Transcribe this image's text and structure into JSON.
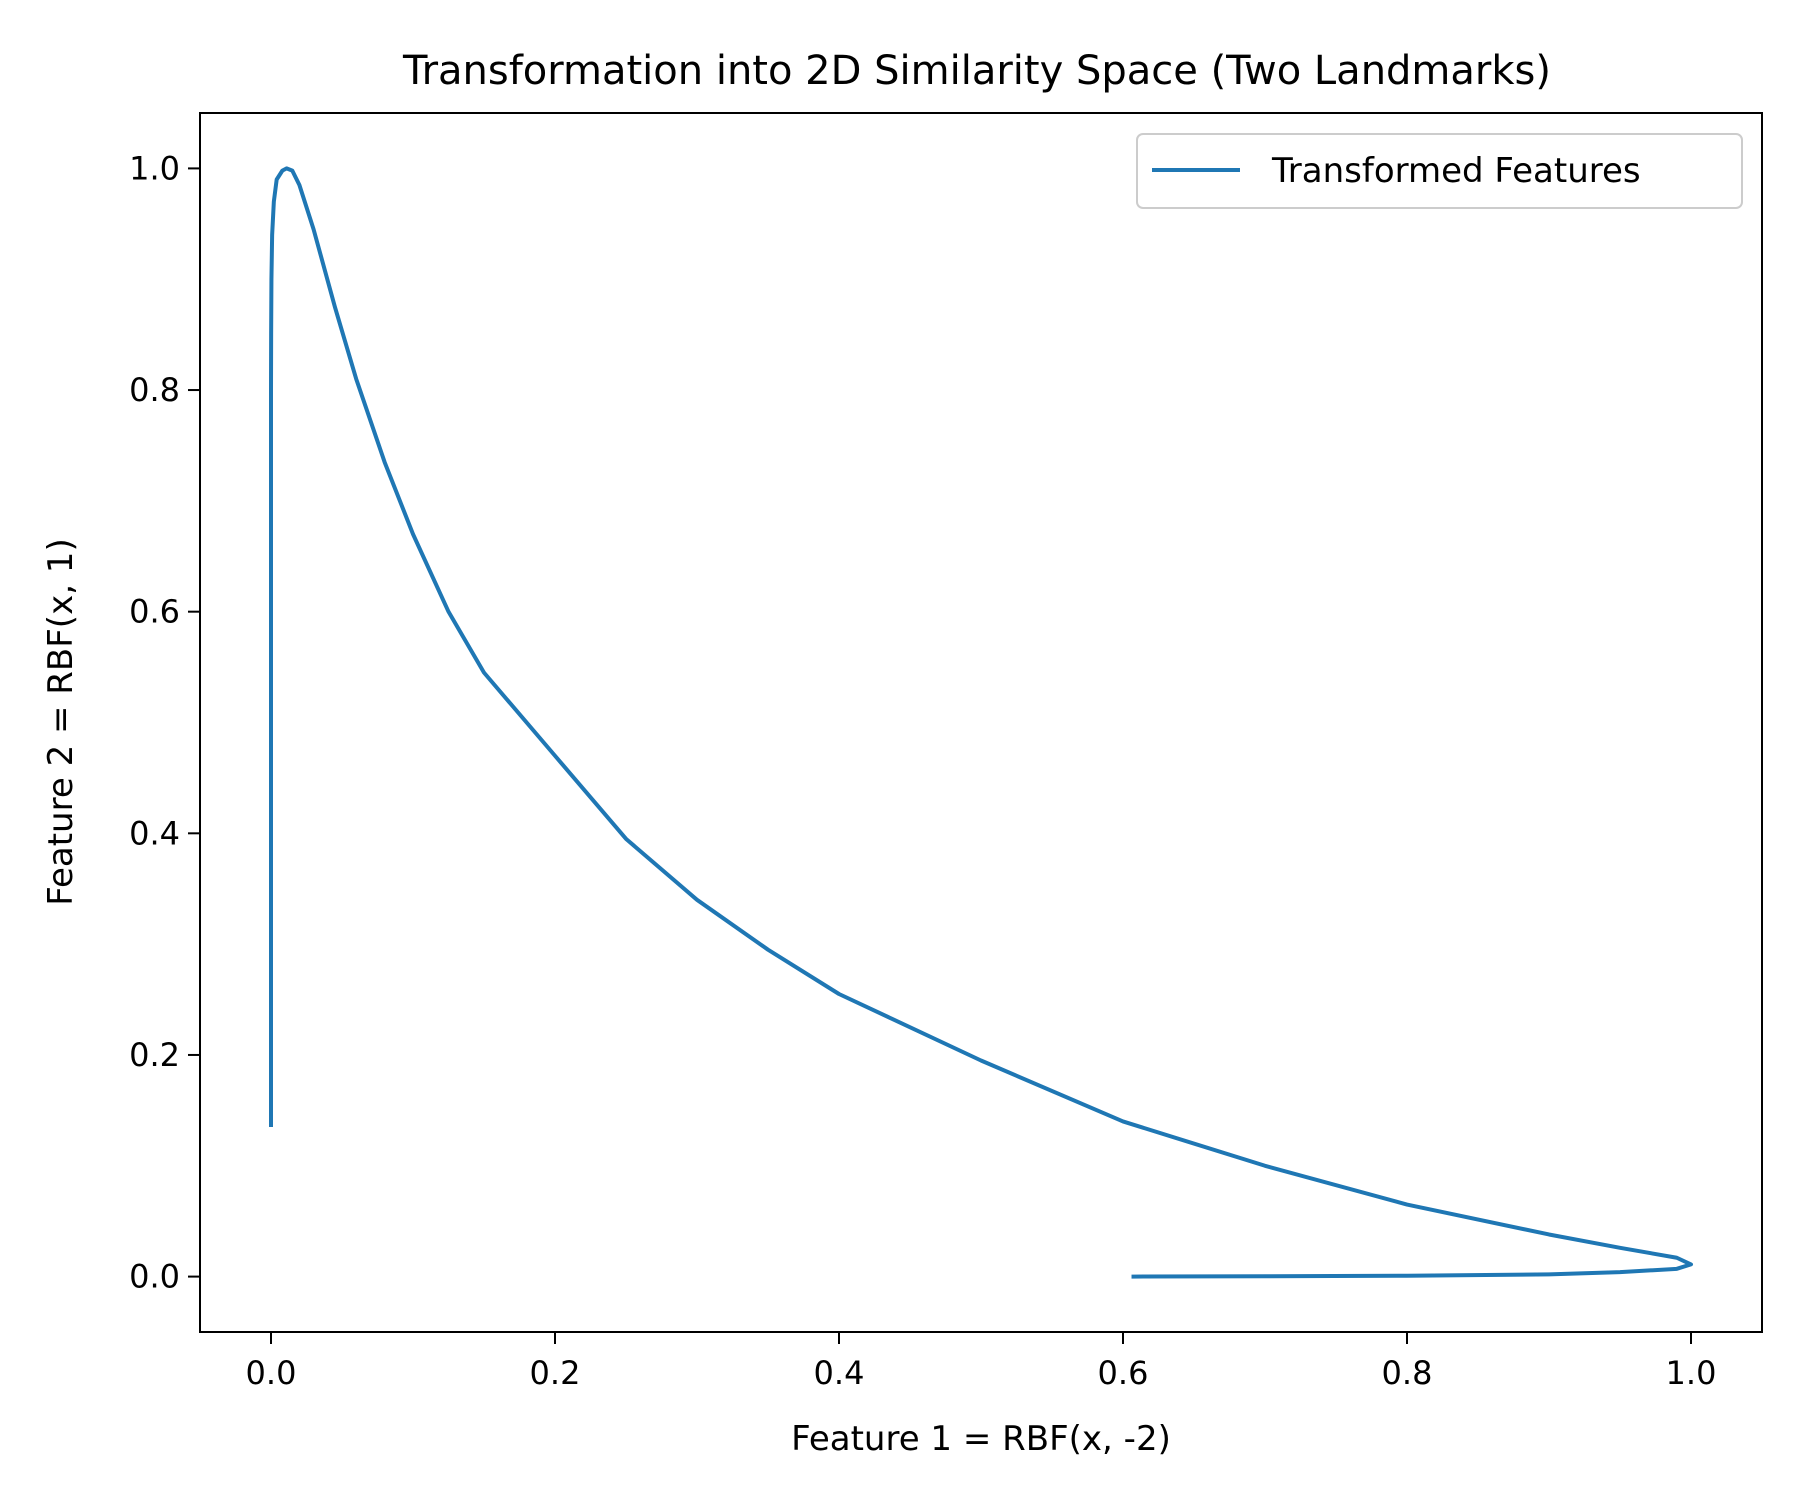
{
  "chart_data": {
    "type": "line",
    "title": "Transformation into 2D Similarity Space (Two Landmarks)",
    "xlabel": "Feature 1 = RBF(x, -2)",
    "ylabel": "Feature 2 = RBF(x, 1)",
    "xlim": [
      -0.05,
      1.05
    ],
    "ylim": [
      -0.05,
      1.05
    ],
    "xticks": [
      0.0,
      0.2,
      0.4,
      0.6,
      0.8,
      1.0
    ],
    "xtick_labels": [
      "0.0",
      "0.2",
      "0.4",
      "0.6",
      "0.8",
      "1.0"
    ],
    "yticks": [
      0.0,
      0.2,
      0.4,
      0.6,
      0.8,
      1.0
    ],
    "ytick_labels": [
      "0.0",
      "0.2",
      "0.4",
      "0.6",
      "0.8",
      "1.0"
    ],
    "grid": false,
    "legend_position": "top-right",
    "series": [
      {
        "name": "Transformed Features",
        "color": "#1f77b4",
        "x": [
          0.0,
          0.0,
          0.0,
          0.0,
          0.0,
          0.0,
          0.0,
          0.0,
          0.0,
          0.0001,
          0.0003,
          0.0008,
          0.002,
          0.004,
          0.008,
          0.011,
          0.015,
          0.02,
          0.03,
          0.045,
          0.06,
          0.08,
          0.1,
          0.125,
          0.15,
          0.2,
          0.25,
          0.3,
          0.35,
          0.4,
          0.5,
          0.6,
          0.7,
          0.8,
          0.9,
          0.95,
          0.99,
          1.0,
          0.99,
          0.95,
          0.9,
          0.8,
          0.7,
          0.606
        ],
        "y": [
          0.135,
          0.2,
          0.3,
          0.4,
          0.5,
          0.6,
          0.7,
          0.75,
          0.8,
          0.85,
          0.9,
          0.94,
          0.97,
          0.99,
          0.998,
          1.0,
          0.998,
          0.985,
          0.945,
          0.875,
          0.81,
          0.735,
          0.67,
          0.6,
          0.545,
          0.47,
          0.395,
          0.34,
          0.295,
          0.255,
          0.195,
          0.14,
          0.1,
          0.065,
          0.038,
          0.026,
          0.017,
          0.011,
          0.007,
          0.004,
          0.002,
          0.0008,
          0.0003,
          0.0
        ]
      }
    ]
  }
}
